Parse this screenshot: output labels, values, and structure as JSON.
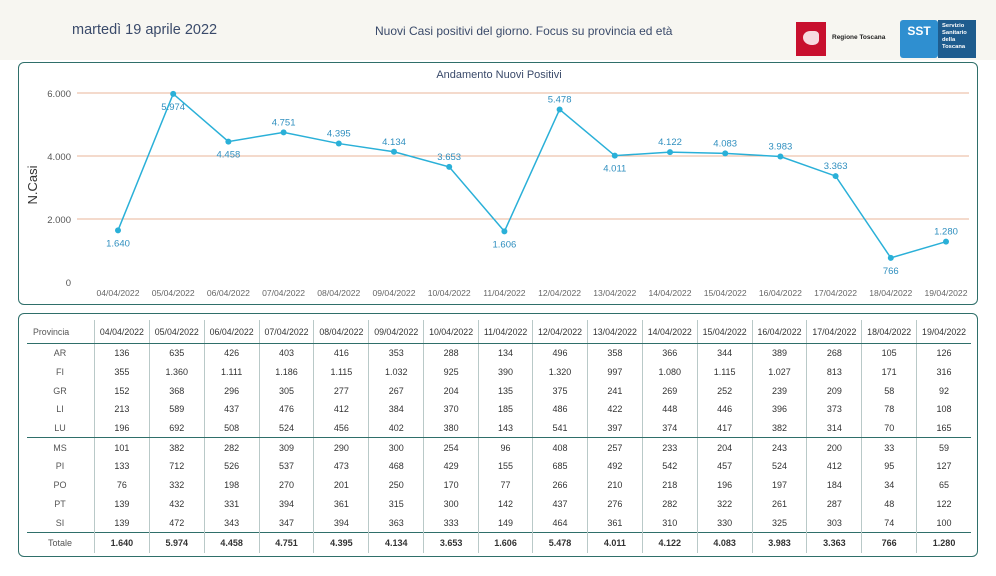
{
  "header": {
    "date": "martedì 19 aprile 2022",
    "title": "Nuovi Casi positivi del giorno. Focus su provincia ed età",
    "logo_regione": "Regione Toscana",
    "logo_sst_short": "SST",
    "logo_sst_text": "Servizio Sanitario della Toscana"
  },
  "colors": {
    "line": "#2ab0d8",
    "grid": "#e8b49a",
    "border": "#2f6f6a",
    "header_bg": "#f7f6f1"
  },
  "chart_data": {
    "type": "line",
    "title": "Andamento Nuovi Positivi",
    "ylabel": "N.Casi",
    "xlabel": "",
    "ylim": [
      0,
      6000
    ],
    "yticks": [
      0,
      2000,
      4000,
      6000
    ],
    "ytick_labels": [
      "0",
      "2.000",
      "4.000",
      "6.000"
    ],
    "grid": true,
    "categories": [
      "04/04/2022",
      "05/04/2022",
      "06/04/2022",
      "07/04/2022",
      "08/04/2022",
      "09/04/2022",
      "10/04/2022",
      "11/04/2022",
      "12/04/2022",
      "13/04/2022",
      "14/04/2022",
      "15/04/2022",
      "16/04/2022",
      "17/04/2022",
      "18/04/2022",
      "19/04/2022"
    ],
    "values": [
      1640,
      5974,
      4458,
      4751,
      4395,
      4134,
      3653,
      1606,
      5478,
      4011,
      4122,
      4083,
      3983,
      3363,
      766,
      1280
    ],
    "value_labels": [
      "1.640",
      "5.974",
      "4.458",
      "4.751",
      "4.395",
      "4.134",
      "3.653",
      "1.606",
      "5.478",
      "4.011",
      "4.122",
      "4.083",
      "3.983",
      "3.363",
      "766",
      "1.280"
    ]
  },
  "table": {
    "header_label": "Provincia",
    "dates": [
      "04/04/2022",
      "05/04/2022",
      "06/04/2022",
      "07/04/2022",
      "08/04/2022",
      "09/04/2022",
      "10/04/2022",
      "11/04/2022",
      "12/04/2022",
      "13/04/2022",
      "14/04/2022",
      "15/04/2022",
      "16/04/2022",
      "17/04/2022",
      "18/04/2022",
      "19/04/2022"
    ],
    "rows": [
      {
        "name": "AR",
        "values": [
          "136",
          "635",
          "426",
          "403",
          "416",
          "353",
          "288",
          "134",
          "496",
          "358",
          "366",
          "344",
          "389",
          "268",
          "105",
          "126"
        ]
      },
      {
        "name": "FI",
        "values": [
          "355",
          "1.360",
          "1.111",
          "1.186",
          "1.115",
          "1.032",
          "925",
          "390",
          "1.320",
          "997",
          "1.080",
          "1.115",
          "1.027",
          "813",
          "171",
          "316"
        ]
      },
      {
        "name": "GR",
        "values": [
          "152",
          "368",
          "296",
          "305",
          "277",
          "267",
          "204",
          "135",
          "375",
          "241",
          "269",
          "252",
          "239",
          "209",
          "58",
          "92"
        ]
      },
      {
        "name": "LI",
        "values": [
          "213",
          "589",
          "437",
          "476",
          "412",
          "384",
          "370",
          "185",
          "486",
          "422",
          "448",
          "446",
          "396",
          "373",
          "78",
          "108"
        ]
      },
      {
        "name": "LU",
        "values": [
          "196",
          "692",
          "508",
          "524",
          "456",
          "402",
          "380",
          "143",
          "541",
          "397",
          "374",
          "417",
          "382",
          "314",
          "70",
          "165"
        ]
      },
      {
        "name": "MS",
        "values": [
          "101",
          "382",
          "282",
          "309",
          "290",
          "300",
          "254",
          "96",
          "408",
          "257",
          "233",
          "204",
          "243",
          "200",
          "33",
          "59"
        ]
      },
      {
        "name": "PI",
        "values": [
          "133",
          "712",
          "526",
          "537",
          "473",
          "468",
          "429",
          "155",
          "685",
          "492",
          "542",
          "457",
          "524",
          "412",
          "95",
          "127"
        ]
      },
      {
        "name": "PO",
        "values": [
          "76",
          "332",
          "198",
          "270",
          "201",
          "250",
          "170",
          "77",
          "266",
          "210",
          "218",
          "196",
          "197",
          "184",
          "34",
          "65"
        ]
      },
      {
        "name": "PT",
        "values": [
          "139",
          "432",
          "331",
          "394",
          "361",
          "315",
          "300",
          "142",
          "437",
          "276",
          "282",
          "322",
          "261",
          "287",
          "48",
          "122"
        ]
      },
      {
        "name": "SI",
        "values": [
          "139",
          "472",
          "343",
          "347",
          "394",
          "363",
          "333",
          "149",
          "464",
          "361",
          "310",
          "330",
          "325",
          "303",
          "74",
          "100"
        ]
      }
    ],
    "total": {
      "name": "Totale",
      "values": [
        "1.640",
        "5.974",
        "4.458",
        "4.751",
        "4.395",
        "4.134",
        "3.653",
        "1.606",
        "5.478",
        "4.011",
        "4.122",
        "4.083",
        "3.983",
        "3.363",
        "766",
        "1.280"
      ]
    }
  }
}
